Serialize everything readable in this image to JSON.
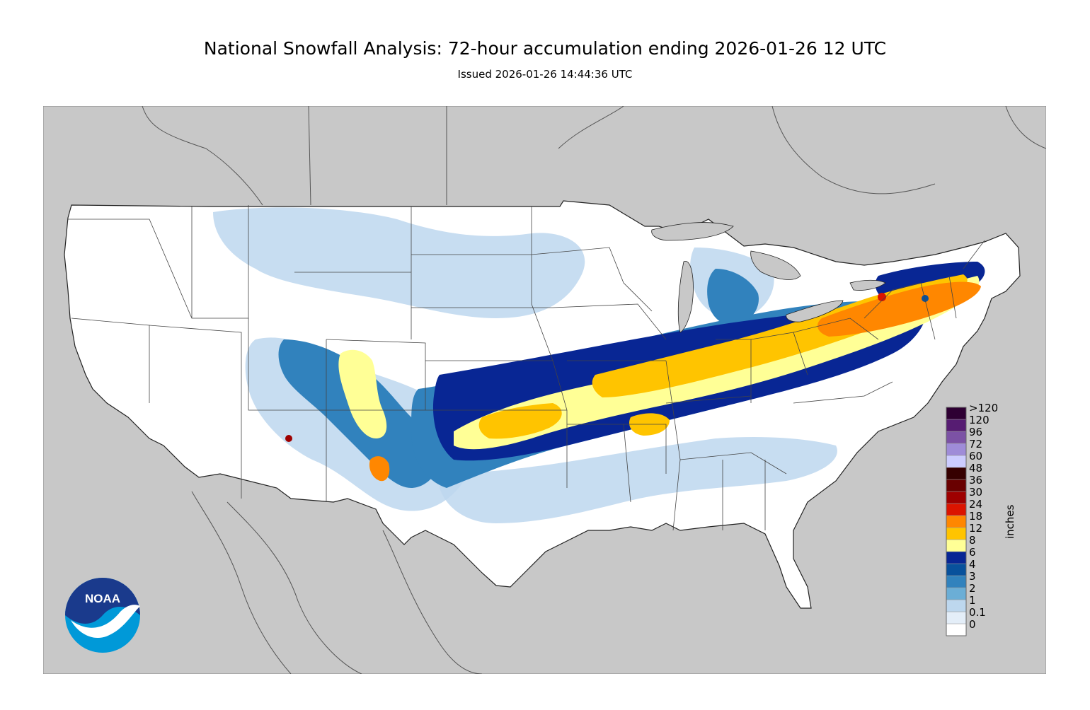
{
  "title": "National Snowfall Analysis: 72-hour accumulation ending 2026-01-26 12 UTC",
  "subtitle": "Issued 2026-01-26 14:44:36 UTC",
  "colorbar": {
    "units": "inches",
    "levels": [
      {
        "label": "0",
        "color": "#ffffff"
      },
      {
        "label": "0.1",
        "color": "#e4eef8"
      },
      {
        "label": "1",
        "color": "#bdd7ee"
      },
      {
        "label": "2",
        "color": "#6baed6"
      },
      {
        "label": "3",
        "color": "#3182bd"
      },
      {
        "label": "4",
        "color": "#08519c"
      },
      {
        "label": "6",
        "color": "#082694"
      },
      {
        "label": "8",
        "color": "#ffff96"
      },
      {
        "label": "12",
        "color": "#ffc400"
      },
      {
        "label": "18",
        "color": "#ff8700"
      },
      {
        "label": "24",
        "color": "#db1400"
      },
      {
        "label": "30",
        "color": "#9e0000"
      },
      {
        "label": "36",
        "color": "#690000"
      },
      {
        "label": "48",
        "color": "#360000"
      },
      {
        "label": "60",
        "color": "#ccccff"
      },
      {
        "label": "72",
        "color": "#9f8cd8"
      },
      {
        "label": "96",
        "color": "#7c52a5"
      },
      {
        "label": "120",
        "color": "#561c72"
      },
      {
        "label": ">120",
        "color": "#2e0033"
      }
    ]
  },
  "map_colors": {
    "ocean_background": "#c8c8c8",
    "land": "#ffffff",
    "borders": "#333333"
  },
  "logo": {
    "text": "NOAA",
    "icon": "noaa-logo"
  }
}
